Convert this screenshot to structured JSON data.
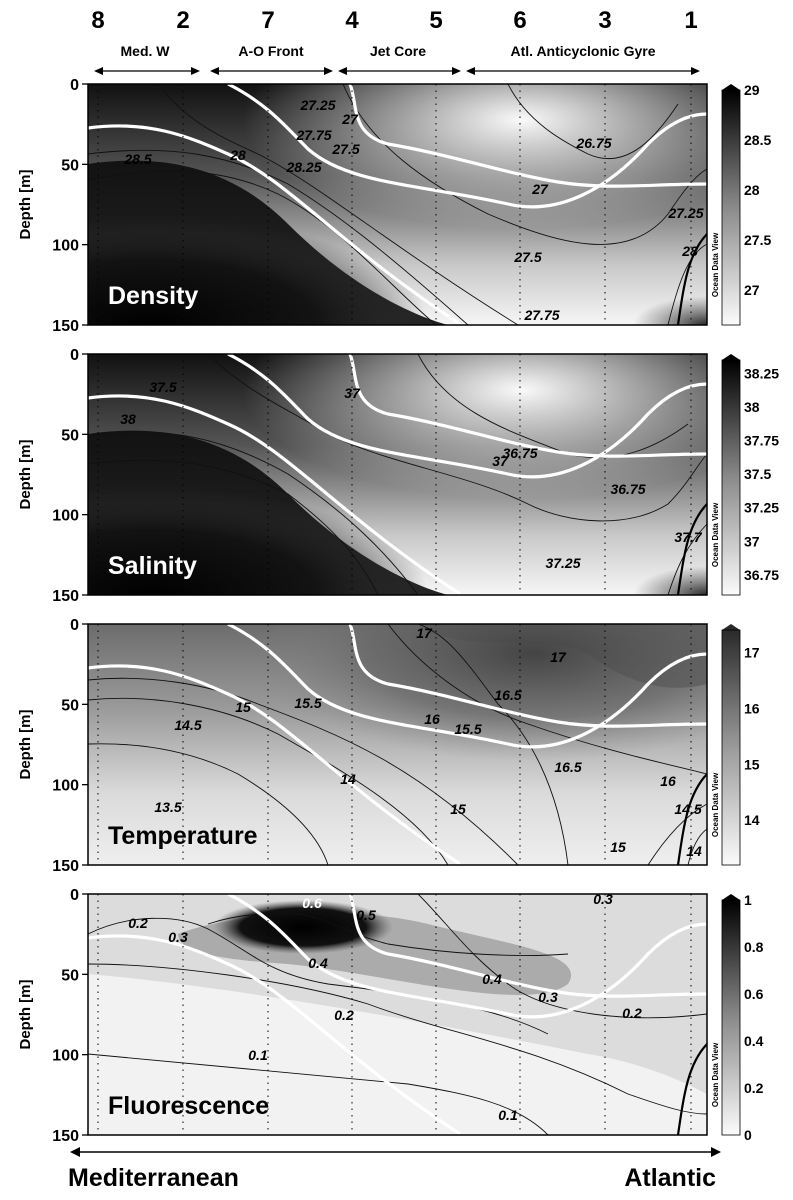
{
  "header": {
    "stations": [
      "8",
      "2",
      "7",
      "4",
      "5",
      "6",
      "3",
      "1"
    ],
    "regions": [
      "Med. W",
      "A-O Front",
      "Jet Core",
      "Atl. Anticyclonic Gyre"
    ]
  },
  "footer": {
    "left_label": "Mediterranean",
    "right_label": "Atlantic"
  },
  "colorbar_credit": "Ocean Data View",
  "chart_data": [
    {
      "type": "heatmap",
      "title": "Density",
      "ylabel": "Depth [m]",
      "ylim": [
        150,
        0
      ],
      "yticks": [
        "0",
        "50",
        "100",
        "150"
      ],
      "colorscale": "white-to-black",
      "colorbar_ticks": [
        "29",
        "28.5",
        "28",
        "27.5",
        "27"
      ],
      "colorbar_range": [
        26.65,
        29
      ],
      "contour_labels": [
        "27.25",
        "27",
        "27.75",
        "26.75",
        "28.5",
        "28",
        "27.5",
        "27",
        "28.25",
        "27.25",
        "28",
        "27.5",
        "27.75"
      ]
    },
    {
      "type": "heatmap",
      "title": "Salinity",
      "ylabel": "Depth [m]",
      "ylim": [
        150,
        0
      ],
      "yticks": [
        "0",
        "50",
        "100",
        "150"
      ],
      "colorscale": "white-to-black",
      "colorbar_ticks": [
        "38.25",
        "38",
        "37.75",
        "37.5",
        "37.25",
        "37",
        "36.75"
      ],
      "colorbar_range": [
        36.6,
        38.35
      ],
      "contour_labels": [
        "37.5",
        "37",
        "38",
        "36.75",
        "36.75",
        "37",
        "37.25",
        "37.7"
      ]
    },
    {
      "type": "heatmap",
      "title": "Temperature",
      "ylabel": "Depth [m]",
      "ylim": [
        150,
        0
      ],
      "yticks": [
        "0",
        "50",
        "100",
        "150"
      ],
      "colorscale": "white-to-black",
      "colorbar_ticks": [
        "17",
        "16",
        "15",
        "14"
      ],
      "colorbar_range": [
        13.2,
        17.4
      ],
      "contour_labels": [
        "17",
        "15.5",
        "16.5",
        "17",
        "15",
        "16",
        "14.5",
        "15.5",
        "16.5",
        "16",
        "14",
        "13.5",
        "15",
        "14.5",
        "15",
        "14"
      ]
    },
    {
      "type": "heatmap",
      "title": "Fluorescence",
      "ylabel": "Depth [m]",
      "ylim": [
        150,
        0
      ],
      "yticks": [
        "0",
        "50",
        "100",
        "150"
      ],
      "colorscale": "white-to-black",
      "colorbar_ticks": [
        "1",
        "0.8",
        "0.6",
        "0.4",
        "0.2",
        "0"
      ],
      "colorbar_range": [
        0,
        1
      ],
      "contour_labels": [
        "0.2",
        "0.3",
        "0.6",
        "0.5",
        "0.3",
        "0.4",
        "0.4",
        "0.2",
        "0.3",
        "0.2",
        "0.1",
        "0.1"
      ]
    }
  ]
}
